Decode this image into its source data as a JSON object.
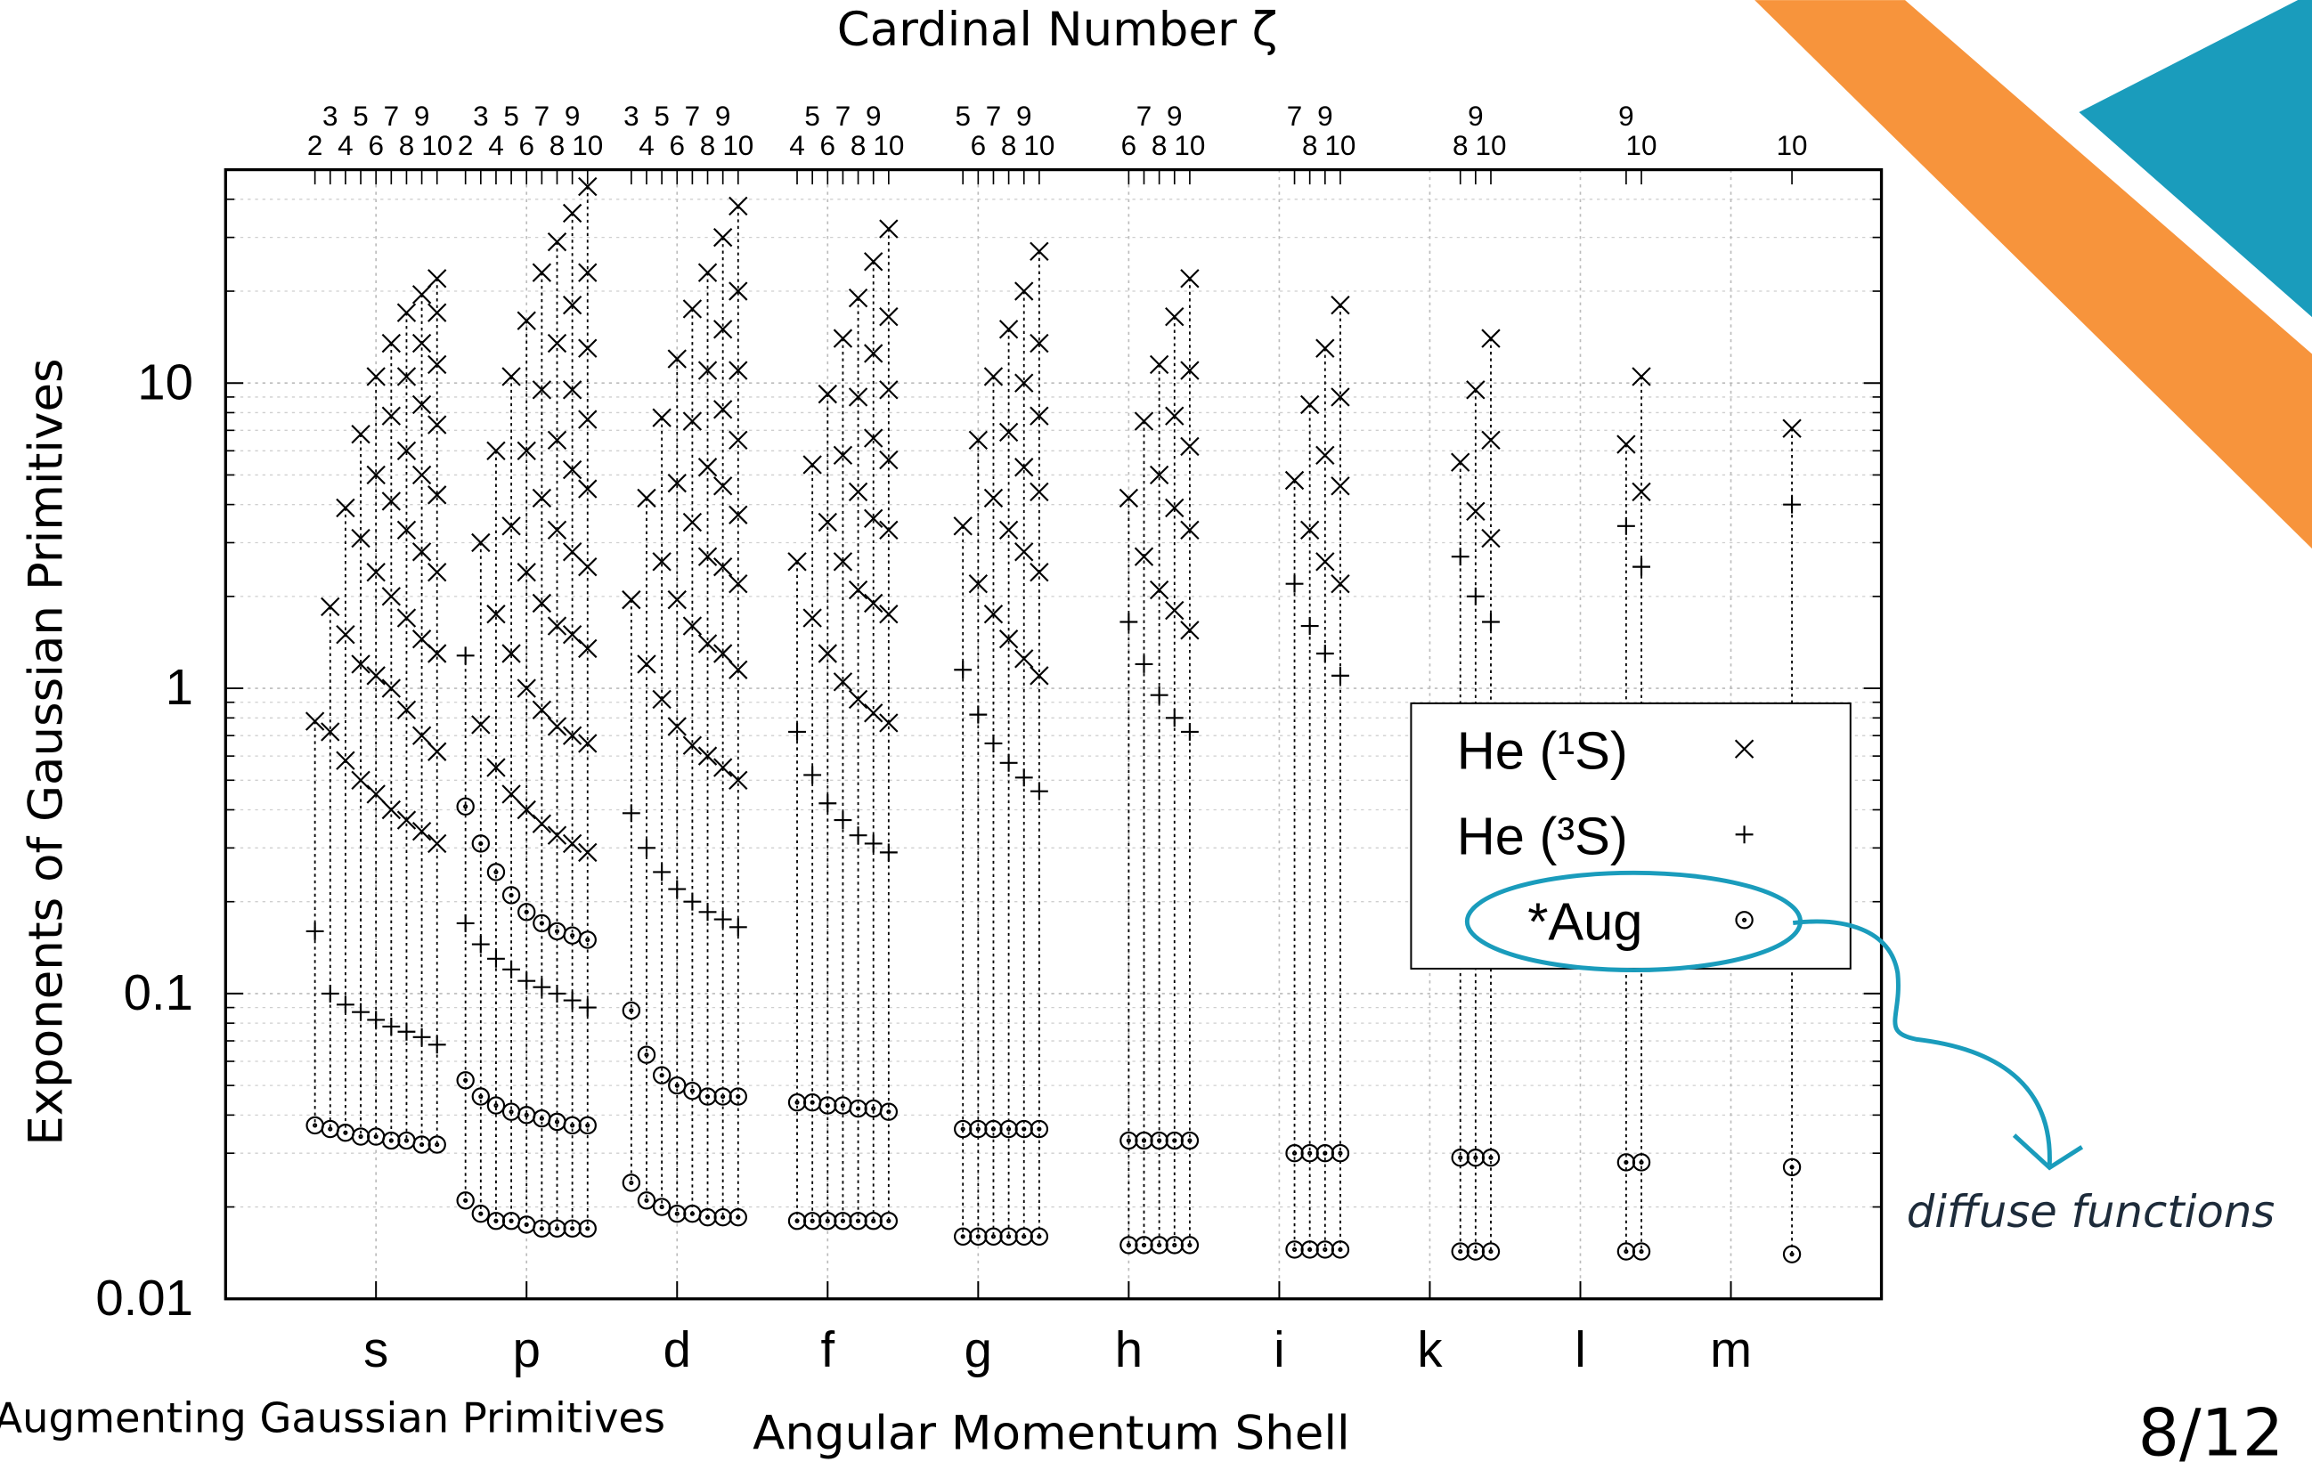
{
  "slide": {
    "footer": "Augmenting Gaussian Primitives",
    "page_number": "8/12"
  },
  "chart_data": {
    "type": "scatter",
    "title": "Cardinal Number ζ",
    "x_label": "Angular Momentum Shell",
    "y_label": "Exponents of Gaussian Primitives",
    "annotation": "diffuse functions",
    "y_scale": "log",
    "ylim": [
      0.01,
      50
    ],
    "yticks": [
      0.01,
      0.1,
      1,
      10
    ],
    "grid": true,
    "legend": "right",
    "categories": [
      "s",
      "p",
      "d",
      "f",
      "g",
      "h",
      "i",
      "k",
      "l",
      "m"
    ],
    "zeta": [
      [
        2,
        3,
        4,
        5,
        6,
        7,
        8,
        9,
        10
      ],
      [
        2,
        3,
        4,
        5,
        6,
        7,
        8,
        9,
        10
      ],
      [
        3,
        4,
        5,
        6,
        7,
        8,
        9,
        10
      ],
      [
        4,
        5,
        6,
        7,
        8,
        9,
        10
      ],
      [
        5,
        6,
        7,
        8,
        9,
        10
      ],
      [
        6,
        7,
        8,
        9,
        10
      ],
      [
        7,
        8,
        9,
        10
      ],
      [
        8,
        9,
        10
      ],
      [
        9,
        10
      ],
      [
        10
      ]
    ],
    "series": [
      {
        "name": "He (¹S)",
        "marker": "x",
        "color": "#000000",
        "values": [
          [
            [
              0.78
            ],
            [
              1.85,
              0.72
            ],
            [
              3.9,
              1.5,
              0.58
            ],
            [
              6.8,
              3.1,
              1.2,
              0.5
            ],
            [
              10.5,
              5,
              2.4,
              1.1,
              0.45
            ],
            [
              13.5,
              7.8,
              4.1,
              2,
              1,
              0.4
            ],
            [
              17,
              10.5,
              6,
              3.3,
              1.7,
              0.85,
              0.37
            ],
            [
              19.5,
              13.5,
              8.5,
              5,
              2.8,
              1.45,
              0.7,
              0.34
            ],
            [
              22,
              17,
              11.5,
              7.3,
              4.3,
              2.4,
              1.3,
              0.62,
              0.31
            ]
          ],
          [
            [],
            [
              3,
              0.76
            ],
            [
              6,
              1.75,
              0.55
            ],
            [
              10.5,
              3.4,
              1.3,
              0.45
            ],
            [
              16,
              6,
              2.4,
              1,
              0.4
            ],
            [
              23,
              9.5,
              4.2,
              1.9,
              0.85,
              0.36
            ],
            [
              29,
              13.5,
              6.5,
              3.3,
              1.6,
              0.75,
              0.33
            ],
            [
              36,
              18,
              9.5,
              5.2,
              2.8,
              1.5,
              0.7,
              0.31
            ],
            [
              44,
              23,
              13,
              7.6,
              4.5,
              2.5,
              1.35,
              0.66,
              0.29
            ]
          ],
          [
            [
              1.95
            ],
            [
              4.2,
              1.2
            ],
            [
              7.7,
              2.6,
              0.92
            ],
            [
              12,
              4.7,
              1.95,
              0.75
            ],
            [
              17.5,
              7.5,
              3.5,
              1.6,
              0.65
            ],
            [
              23,
              11,
              5.3,
              2.7,
              1.4,
              0.6
            ],
            [
              30,
              15,
              8.2,
              4.6,
              2.5,
              1.3,
              0.55
            ],
            [
              38,
              20,
              11,
              6.5,
              3.7,
              2.2,
              1.15,
              0.5
            ]
          ],
          [
            [
              2.6
            ],
            [
              5.4,
              1.7
            ],
            [
              9.2,
              3.5,
              1.3
            ],
            [
              14,
              5.8,
              2.6,
              1.05
            ],
            [
              19,
              9,
              4.4,
              2.1,
              0.92
            ],
            [
              25,
              12.5,
              6.6,
              3.6,
              1.9,
              0.83
            ],
            [
              32,
              16.5,
              9.5,
              5.6,
              3.3,
              1.75,
              0.77
            ]
          ],
          [
            [
              3.4
            ],
            [
              6.5,
              2.2
            ],
            [
              10.5,
              4.2,
              1.75
            ],
            [
              15,
              6.9,
              3.3,
              1.45
            ],
            [
              20,
              10,
              5.3,
              2.8,
              1.25
            ],
            [
              27,
              13.5,
              7.8,
              4.4,
              2.4,
              1.1
            ]
          ],
          [
            [
              4.2
            ],
            [
              7.5,
              2.7
            ],
            [
              11.5,
              5,
              2.1
            ],
            [
              16.5,
              7.8,
              3.9,
              1.8
            ],
            [
              22,
              11,
              6.2,
              3.3,
              1.55
            ]
          ],
          [
            [
              4.8
            ],
            [
              8.5,
              3.3
            ],
            [
              13,
              5.8,
              2.6
            ],
            [
              18,
              9,
              4.6,
              2.2
            ]
          ],
          [
            [
              5.5
            ],
            [
              9.5,
              3.8
            ],
            [
              14,
              6.5,
              3.1
            ]
          ],
          [
            [
              6.3
            ],
            [
              10.5,
              4.4
            ]
          ],
          [
            [
              7.1
            ]
          ]
        ]
      },
      {
        "name": "He (³S)",
        "marker": "+",
        "color": "#000000",
        "values": [
          [
            [
              0.16
            ],
            [
              0.1
            ],
            [
              0.092
            ],
            [
              0.087
            ],
            [
              0.082
            ],
            [
              0.078
            ],
            [
              0.075
            ],
            [
              0.072
            ],
            [
              0.068
            ]
          ],
          [
            [
              1.28,
              0.17
            ],
            [
              0.145
            ],
            [
              0.13
            ],
            [
              0.12
            ],
            [
              0.11
            ],
            [
              0.105
            ],
            [
              0.1
            ],
            [
              0.095
            ],
            [
              0.09
            ]
          ],
          [
            [
              0.39
            ],
            [
              0.3
            ],
            [
              0.25
            ],
            [
              0.22
            ],
            [
              0.2
            ],
            [
              0.185
            ],
            [
              0.175
            ],
            [
              0.165
            ]
          ],
          [
            [
              0.72
            ],
            [
              0.52
            ],
            [
              0.42
            ],
            [
              0.37
            ],
            [
              0.33
            ],
            [
              0.31
            ],
            [
              0.29
            ]
          ],
          [
            [
              1.15
            ],
            [
              0.82
            ],
            [
              0.66
            ],
            [
              0.57
            ],
            [
              0.51
            ],
            [
              0.46
            ]
          ],
          [
            [
              1.65
            ],
            [
              1.2
            ],
            [
              0.95
            ],
            [
              0.8
            ],
            [
              0.72
            ]
          ],
          [
            [
              2.2
            ],
            [
              1.6
            ],
            [
              1.3
            ],
            [
              1.1
            ]
          ],
          [
            [
              2.7
            ],
            [
              2
            ],
            [
              1.65
            ]
          ],
          [
            [
              3.4
            ],
            [
              2.5
            ]
          ],
          [
            [
              4
            ]
          ]
        ]
      },
      {
        "name": "*Aug",
        "marker": "circle-dot",
        "color": "#000000",
        "values": [
          [
            [
              0.037
            ],
            [
              0.036
            ],
            [
              0.035
            ],
            [
              0.034
            ],
            [
              0.034
            ],
            [
              0.033
            ],
            [
              0.033
            ],
            [
              0.032
            ],
            [
              0.032
            ]
          ],
          [
            [
              0.41,
              0.052,
              0.021
            ],
            [
              0.31,
              0.046,
              0.019
            ],
            [
              0.25,
              0.043,
              0.018
            ],
            [
              0.21,
              0.041,
              0.018
            ],
            [
              0.185,
              0.04,
              0.0175
            ],
            [
              0.17,
              0.039,
              0.017
            ],
            [
              0.16,
              0.038,
              0.017
            ],
            [
              0.155,
              0.037,
              0.017
            ],
            [
              0.15,
              0.037,
              0.017
            ]
          ],
          [
            [
              0.088,
              0.024
            ],
            [
              0.063,
              0.021
            ],
            [
              0.054,
              0.02
            ],
            [
              0.05,
              0.019
            ],
            [
              0.048,
              0.019
            ],
            [
              0.046,
              0.0185
            ],
            [
              0.046,
              0.0185
            ],
            [
              0.046,
              0.0185
            ]
          ],
          [
            [
              0.044,
              0.018
            ],
            [
              0.044,
              0.018
            ],
            [
              0.043,
              0.018
            ],
            [
              0.043,
              0.018
            ],
            [
              0.042,
              0.018
            ],
            [
              0.042,
              0.018
            ],
            [
              0.041,
              0.018
            ]
          ],
          [
            [
              0.036,
              0.016
            ],
            [
              0.036,
              0.016
            ],
            [
              0.036,
              0.016
            ],
            [
              0.036,
              0.016
            ],
            [
              0.036,
              0.016
            ],
            [
              0.036,
              0.016
            ]
          ],
          [
            [
              0.033,
              0.015
            ],
            [
              0.033,
              0.015
            ],
            [
              0.033,
              0.015
            ],
            [
              0.033,
              0.015
            ],
            [
              0.033,
              0.015
            ]
          ],
          [
            [
              0.03,
              0.0145
            ],
            [
              0.03,
              0.0145
            ],
            [
              0.03,
              0.0145
            ],
            [
              0.03,
              0.0145
            ]
          ],
          [
            [
              0.029,
              0.0143
            ],
            [
              0.029,
              0.0143
            ],
            [
              0.029,
              0.0143
            ]
          ],
          [
            [
              0.028,
              0.0143
            ],
            [
              0.028,
              0.0143
            ]
          ],
          [
            [
              0.027,
              0.014
            ]
          ]
        ]
      }
    ]
  }
}
